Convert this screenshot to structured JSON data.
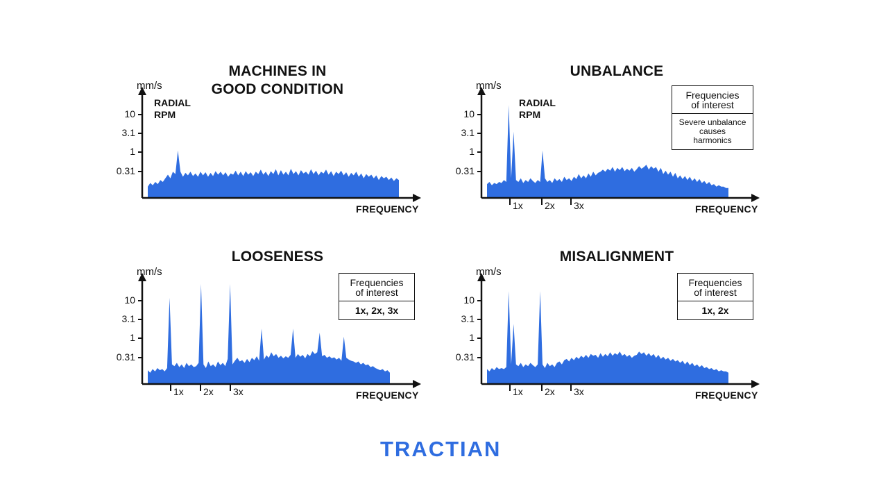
{
  "brand": {
    "logo_text": "TRACTIAN",
    "color": "#2f6de0"
  },
  "fill_color": "#2f6de0",
  "chart_data": [
    {
      "type": "area",
      "title_lines": [
        "MACHINES IN",
        "GOOD CONDITION"
      ],
      "ylabel": "mm/s",
      "xlabel": "FREQUENCY",
      "scale": "log",
      "y_ticks": [
        "10",
        "3.1",
        "1",
        "0.31"
      ],
      "note_lines": [
        "RADIAL",
        "RPM"
      ],
      "harmonics": [],
      "legend": null,
      "x": [
        0,
        1,
        2,
        3,
        4,
        5,
        6,
        7,
        8,
        9,
        10,
        11,
        12,
        13,
        14,
        15,
        16,
        17,
        18,
        19,
        20,
        21,
        22,
        23,
        24,
        25,
        26,
        27,
        28,
        29,
        30,
        31,
        32,
        33,
        34,
        35,
        36,
        37,
        38,
        39,
        40,
        41,
        42,
        43,
        44,
        45,
        46,
        47,
        48,
        49,
        50,
        51,
        52,
        53,
        54,
        55,
        56,
        57,
        58,
        59,
        60,
        61,
        62,
        63,
        64,
        65,
        66,
        67,
        68,
        69,
        70,
        71,
        72,
        73,
        74,
        75,
        76,
        77,
        78,
        79,
        80,
        81,
        82,
        83,
        84,
        85,
        86,
        87,
        88,
        89,
        90,
        91,
        92,
        93,
        94,
        95,
        96,
        97,
        98,
        99,
        100
      ],
      "values": [
        0.12,
        0.15,
        0.13,
        0.16,
        0.14,
        0.18,
        0.16,
        0.2,
        0.25,
        0.2,
        0.3,
        0.26,
        1.1,
        0.3,
        0.22,
        0.28,
        0.24,
        0.3,
        0.23,
        0.27,
        0.22,
        0.3,
        0.24,
        0.29,
        0.22,
        0.28,
        0.23,
        0.31,
        0.25,
        0.3,
        0.24,
        0.29,
        0.22,
        0.27,
        0.25,
        0.32,
        0.24,
        0.3,
        0.23,
        0.31,
        0.25,
        0.29,
        0.23,
        0.3,
        0.26,
        0.34,
        0.25,
        0.3,
        0.23,
        0.31,
        0.26,
        0.35,
        0.24,
        0.33,
        0.25,
        0.3,
        0.24,
        0.36,
        0.26,
        0.31,
        0.24,
        0.33,
        0.27,
        0.3,
        0.25,
        0.35,
        0.26,
        0.32,
        0.24,
        0.3,
        0.27,
        0.34,
        0.25,
        0.31,
        0.23,
        0.3,
        0.26,
        0.32,
        0.24,
        0.29,
        0.22,
        0.28,
        0.24,
        0.3,
        0.22,
        0.27,
        0.2,
        0.26,
        0.22,
        0.25,
        0.2,
        0.24,
        0.18,
        0.23,
        0.2,
        0.22,
        0.18,
        0.21,
        0.17,
        0.2,
        0.18
      ]
    },
    {
      "type": "area",
      "title_lines": [
        "UNBALANCE"
      ],
      "ylabel": "mm/s",
      "xlabel": "FREQUENCY",
      "scale": "log",
      "y_ticks": [
        "10",
        "3.1",
        "1",
        "0.31"
      ],
      "note_lines": [
        "RADIAL",
        "RPM"
      ],
      "harmonics": [
        "1x",
        "2x",
        "3x"
      ],
      "legend": {
        "head_lines": [
          "Frequencies",
          "of interest"
        ],
        "body_lines": [
          "Severe unbalance",
          "causes",
          "harmonics"
        ],
        "body_bold": false
      },
      "x": [
        0,
        1,
        2,
        3,
        4,
        5,
        6,
        7,
        8,
        9,
        10,
        11,
        12,
        13,
        14,
        15,
        16,
        17,
        18,
        19,
        20,
        21,
        22,
        23,
        24,
        25,
        26,
        27,
        28,
        29,
        30,
        31,
        32,
        33,
        34,
        35,
        36,
        37,
        38,
        39,
        40,
        41,
        42,
        43,
        44,
        45,
        46,
        47,
        48,
        49,
        50,
        51,
        52,
        53,
        54,
        55,
        56,
        57,
        58,
        59,
        60,
        61,
        62,
        63,
        64,
        65,
        66,
        67,
        68,
        69,
        70,
        71,
        72,
        73,
        74,
        75,
        76,
        77,
        78,
        79,
        80,
        81,
        82,
        83,
        84,
        85,
        86,
        87,
        88,
        89,
        90,
        91,
        92,
        93,
        94,
        95,
        96,
        97,
        98,
        99,
        100
      ],
      "values": [
        0.14,
        0.16,
        0.13,
        0.15,
        0.14,
        0.16,
        0.15,
        0.18,
        0.16,
        18,
        0.2,
        3.5,
        0.18,
        0.16,
        0.2,
        0.15,
        0.18,
        0.16,
        0.2,
        0.17,
        0.15,
        0.18,
        0.16,
        1.1,
        0.2,
        0.16,
        0.18,
        0.15,
        0.2,
        0.17,
        0.19,
        0.16,
        0.22,
        0.18,
        0.2,
        0.17,
        0.22,
        0.19,
        0.26,
        0.2,
        0.24,
        0.2,
        0.27,
        0.22,
        0.3,
        0.24,
        0.28,
        0.3,
        0.34,
        0.3,
        0.36,
        0.32,
        0.4,
        0.3,
        0.38,
        0.33,
        0.4,
        0.31,
        0.36,
        0.32,
        0.38,
        0.3,
        0.35,
        0.42,
        0.36,
        0.4,
        0.46,
        0.34,
        0.42,
        0.36,
        0.4,
        0.3,
        0.38,
        0.26,
        0.32,
        0.25,
        0.3,
        0.22,
        0.28,
        0.2,
        0.24,
        0.19,
        0.23,
        0.18,
        0.22,
        0.17,
        0.2,
        0.16,
        0.19,
        0.15,
        0.17,
        0.14,
        0.16,
        0.13,
        0.14,
        0.12,
        0.13,
        0.12,
        0.12,
        0.11,
        0.11
      ]
    },
    {
      "type": "area",
      "title_lines": [
        "LOOSENESS"
      ],
      "ylabel": "mm/s",
      "xlabel": "FREQUENCY",
      "scale": "log",
      "y_ticks": [
        "10",
        "3.1",
        "1",
        "0.31"
      ],
      "note_lines": [],
      "harmonics": [
        "1x",
        "2x",
        "3x"
      ],
      "legend": {
        "head_lines": [
          "Frequencies",
          "of interest"
        ],
        "body_lines": [
          "1x, 2x, 3x"
        ],
        "body_bold": true
      },
      "x": [
        0,
        1,
        2,
        3,
        4,
        5,
        6,
        7,
        8,
        9,
        10,
        11,
        12,
        13,
        14,
        15,
        16,
        17,
        18,
        19,
        20,
        21,
        22,
        23,
        24,
        25,
        26,
        27,
        28,
        29,
        30,
        31,
        32,
        33,
        34,
        35,
        36,
        37,
        38,
        39,
        40,
        41,
        42,
        43,
        44,
        45,
        46,
        47,
        48,
        49,
        50,
        51,
        52,
        53,
        54,
        55,
        56,
        57,
        58,
        59,
        60,
        61,
        62,
        63,
        64,
        65,
        66,
        67,
        68,
        69,
        70,
        71,
        72,
        73,
        74,
        75,
        76,
        77,
        78,
        79,
        80,
        81,
        82,
        83,
        84,
        85,
        86,
        87,
        88,
        89,
        90,
        91,
        92,
        93,
        94,
        95,
        96,
        97,
        98,
        99,
        100
      ],
      "values": [
        0.14,
        0.12,
        0.15,
        0.13,
        0.16,
        0.14,
        0.15,
        0.13,
        0.16,
        12,
        0.2,
        0.18,
        0.22,
        0.17,
        0.2,
        0.16,
        0.22,
        0.18,
        0.2,
        0.17,
        0.18,
        0.22,
        28,
        0.2,
        0.16,
        0.24,
        0.18,
        0.2,
        0.17,
        0.24,
        0.19,
        0.22,
        0.18,
        0.28,
        28,
        0.2,
        0.25,
        0.3,
        0.24,
        0.26,
        0.22,
        0.28,
        0.23,
        0.3,
        0.26,
        0.33,
        0.25,
        1.8,
        0.27,
        0.35,
        0.3,
        0.42,
        0.33,
        0.38,
        0.3,
        0.34,
        0.29,
        0.33,
        0.3,
        0.36,
        1.8,
        0.3,
        0.38,
        0.32,
        0.36,
        0.29,
        0.38,
        0.33,
        0.45,
        0.38,
        0.42,
        1.4,
        0.33,
        0.36,
        0.3,
        0.33,
        0.29,
        0.31,
        0.27,
        0.3,
        0.25,
        1.1,
        0.3,
        0.27,
        0.25,
        0.24,
        0.22,
        0.24,
        0.2,
        0.22,
        0.19,
        0.2,
        0.17,
        0.18,
        0.16,
        0.15,
        0.14,
        0.15,
        0.13,
        0.14,
        0.12
      ]
    },
    {
      "type": "area",
      "title_lines": [
        "MISALIGNMENT"
      ],
      "ylabel": "mm/s",
      "xlabel": "FREQUENCY",
      "scale": "log",
      "y_ticks": [
        "10",
        "3.1",
        "1",
        "0.31"
      ],
      "note_lines": [],
      "harmonics": [
        "1x",
        "2x",
        "3x"
      ],
      "legend": {
        "head_lines": [
          "Frequencies",
          "of interest"
        ],
        "body_lines": [
          "1x, 2x"
        ],
        "body_bold": true
      },
      "x": [
        0,
        1,
        2,
        3,
        4,
        5,
        6,
        7,
        8,
        9,
        10,
        11,
        12,
        13,
        14,
        15,
        16,
        17,
        18,
        19,
        20,
        21,
        22,
        23,
        24,
        25,
        26,
        27,
        28,
        29,
        30,
        31,
        32,
        33,
        34,
        35,
        36,
        37,
        38,
        39,
        40,
        41,
        42,
        43,
        44,
        45,
        46,
        47,
        48,
        49,
        50,
        51,
        52,
        53,
        54,
        55,
        56,
        57,
        58,
        59,
        60,
        61,
        62,
        63,
        64,
        65,
        66,
        67,
        68,
        69,
        70,
        71,
        72,
        73,
        74,
        75,
        76,
        77,
        78,
        79,
        80,
        81,
        82,
        83,
        84,
        85,
        86,
        87,
        88,
        89,
        90,
        91,
        92,
        93,
        94,
        95,
        96,
        97,
        98,
        99,
        100
      ],
      "values": [
        0.15,
        0.13,
        0.16,
        0.14,
        0.17,
        0.15,
        0.16,
        0.15,
        0.17,
        18,
        0.2,
        2.4,
        0.2,
        0.18,
        0.22,
        0.17,
        0.2,
        0.18,
        0.22,
        0.19,
        0.17,
        0.2,
        18,
        0.2,
        0.16,
        0.22,
        0.18,
        0.2,
        0.17,
        0.22,
        0.24,
        0.2,
        0.26,
        0.28,
        0.24,
        0.3,
        0.26,
        0.32,
        0.28,
        0.34,
        0.3,
        0.36,
        0.3,
        0.38,
        0.34,
        0.36,
        0.3,
        0.4,
        0.32,
        0.38,
        0.33,
        0.42,
        0.34,
        0.4,
        0.36,
        0.44,
        0.34,
        0.38,
        0.32,
        0.36,
        0.3,
        0.34,
        0.36,
        0.44,
        0.38,
        0.42,
        0.34,
        0.4,
        0.33,
        0.38,
        0.3,
        0.36,
        0.28,
        0.32,
        0.27,
        0.3,
        0.25,
        0.28,
        0.24,
        0.26,
        0.22,
        0.25,
        0.2,
        0.24,
        0.19,
        0.22,
        0.18,
        0.2,
        0.17,
        0.19,
        0.16,
        0.17,
        0.15,
        0.16,
        0.14,
        0.15,
        0.13,
        0.14,
        0.13,
        0.13,
        0.12
      ]
    }
  ]
}
